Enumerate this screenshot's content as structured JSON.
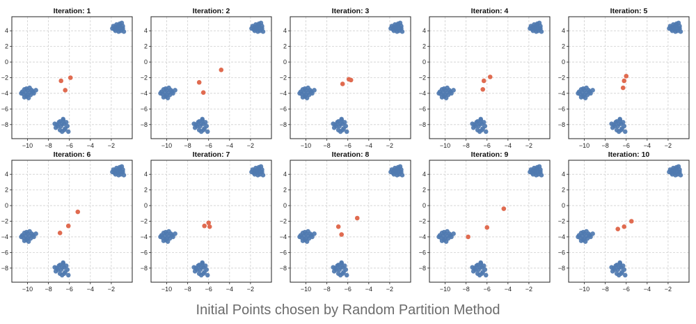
{
  "caption": "Initial Points chosen by Random Partition Method",
  "colors": {
    "cluster_points": "#4f79b0",
    "centroids": "#e06b50",
    "grid": "#cfcfcf"
  },
  "chart_data": {
    "type": "scatter",
    "grid": true,
    "layout": "2 rows x 5 columns of panels",
    "xlim": [
      -11.5,
      0
    ],
    "ylim": [
      -9.8,
      5.8
    ],
    "xticks": [
      -10,
      -8,
      -6,
      -4,
      -2
    ],
    "yticks": [
      -8,
      -6,
      -4,
      -2,
      0,
      2,
      4
    ],
    "clusters": [
      {
        "name": "",
        "center": [
          -10.1,
          -3.9
        ],
        "points": [
          [
            -10.5,
            -3.8
          ],
          [
            -10.3,
            -3.5
          ],
          [
            -10.0,
            -3.6
          ],
          [
            -9.8,
            -3.9
          ],
          [
            -9.7,
            -4.2
          ],
          [
            -10.1,
            -4.4
          ],
          [
            -10.4,
            -4.1
          ],
          [
            -9.6,
            -3.6
          ],
          [
            -9.9,
            -4.6
          ],
          [
            -10.2,
            -3.9
          ],
          [
            -9.4,
            -4.0
          ],
          [
            -10.6,
            -4.0
          ],
          [
            -9.8,
            -3.3
          ],
          [
            -10.0,
            -4.2
          ],
          [
            -9.5,
            -3.8
          ],
          [
            -10.3,
            -4.5
          ],
          [
            -9.2,
            -3.6
          ],
          [
            -10.1,
            -3.4
          ]
        ]
      },
      {
        "name": "",
        "center": [
          -6.8,
          -8.1
        ],
        "points": [
          [
            -7.2,
            -8.0
          ],
          [
            -7.0,
            -7.7
          ],
          [
            -6.8,
            -8.2
          ],
          [
            -6.5,
            -7.9
          ],
          [
            -6.4,
            -8.5
          ],
          [
            -6.9,
            -8.7
          ],
          [
            -7.3,
            -8.4
          ],
          [
            -6.6,
            -7.4
          ],
          [
            -6.7,
            -8.9
          ],
          [
            -6.2,
            -8.2
          ],
          [
            -7.1,
            -8.2
          ],
          [
            -6.9,
            -7.6
          ],
          [
            -6.5,
            -8.7
          ],
          [
            -6.7,
            -7.9
          ],
          [
            -7.4,
            -7.9
          ],
          [
            -6.3,
            -7.7
          ],
          [
            -6.1,
            -8.9
          ],
          [
            -6.6,
            -7.3
          ]
        ]
      },
      {
        "name": "",
        "center": [
          -1.3,
          4.4
        ],
        "points": [
          [
            -1.6,
            4.5
          ],
          [
            -1.4,
            4.2
          ],
          [
            -1.2,
            4.6
          ],
          [
            -1.0,
            4.3
          ],
          [
            -1.5,
            4.8
          ],
          [
            -1.1,
            4.0
          ],
          [
            -1.7,
            4.2
          ],
          [
            -0.9,
            4.6
          ],
          [
            -1.3,
            3.9
          ],
          [
            -1.2,
            4.9
          ],
          [
            -0.8,
            3.9
          ],
          [
            -1.8,
            4.6
          ],
          [
            -1.4,
            4.4
          ],
          [
            -1.0,
            5.0
          ],
          [
            -1.6,
            4.0
          ],
          [
            -0.9,
            4.3
          ],
          [
            -1.3,
            4.7
          ],
          [
            -1.9,
            4.3
          ]
        ]
      }
    ],
    "panels": [
      {
        "title": "Iteration: 1",
        "centroids": [
          [
            -6.8,
            -2.4
          ],
          [
            -5.9,
            -2.0
          ],
          [
            -6.4,
            -3.6
          ]
        ]
      },
      {
        "title": "Iteration: 2",
        "centroids": [
          [
            -6.9,
            -2.6
          ],
          [
            -4.8,
            -1.0
          ],
          [
            -6.5,
            -3.9
          ]
        ]
      },
      {
        "title": "Iteration: 3",
        "centroids": [
          [
            -6.5,
            -2.8
          ],
          [
            -5.9,
            -2.2
          ],
          [
            -5.7,
            -2.3
          ]
        ]
      },
      {
        "title": "Iteration: 4",
        "centroids": [
          [
            -6.3,
            -2.4
          ],
          [
            -5.7,
            -1.9
          ],
          [
            -6.4,
            -3.5
          ]
        ]
      },
      {
        "title": "Iteration: 5",
        "centroids": [
          [
            -6.0,
            -1.8
          ],
          [
            -6.2,
            -2.4
          ],
          [
            -6.3,
            -3.3
          ]
        ]
      },
      {
        "title": "Iteration: 6",
        "centroids": [
          [
            -5.2,
            -0.8
          ],
          [
            -6.1,
            -2.6
          ],
          [
            -6.9,
            -3.5
          ]
        ]
      },
      {
        "title": "Iteration: 7",
        "centroids": [
          [
            -6.4,
            -2.6
          ],
          [
            -6.0,
            -2.2
          ],
          [
            -5.9,
            -2.7
          ]
        ]
      },
      {
        "title": "Iteration: 8",
        "centroids": [
          [
            -6.9,
            -2.7
          ],
          [
            -6.6,
            -3.7
          ],
          [
            -5.1,
            -1.6
          ]
        ]
      },
      {
        "title": "Iteration: 9",
        "centroids": [
          [
            -7.8,
            -4.0
          ],
          [
            -6.0,
            -2.8
          ],
          [
            -4.4,
            -0.4
          ]
        ]
      },
      {
        "title": "Iteration: 10",
        "centroids": [
          [
            -6.8,
            -3.0
          ],
          [
            -6.2,
            -2.7
          ],
          [
            -5.5,
            -2.0
          ]
        ]
      }
    ]
  }
}
